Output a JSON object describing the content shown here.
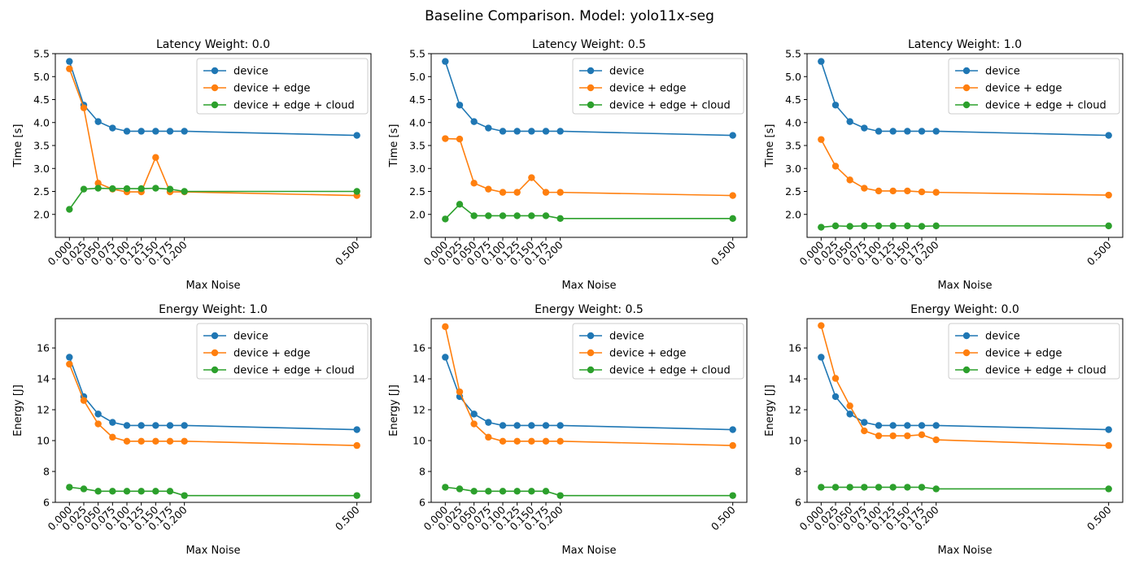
{
  "figure": {
    "title": "Baseline Comparison. Model: yolo11x-seg"
  },
  "colors": {
    "device": "#1f77b4",
    "device + edge": "#ff7f0e",
    "device + edge + cloud": "#2ca02c"
  },
  "chart_data": [
    {
      "type": "line",
      "title": "Latency Weight: 0.0",
      "xlabel": "Max Noise",
      "ylabel": "Time [s]",
      "x": [
        0.0,
        0.025,
        0.05,
        0.075,
        0.1,
        0.125,
        0.15,
        0.175,
        0.2,
        0.5
      ],
      "xticklabels": [
        "0.000",
        "0.025",
        "0.050",
        "0.075",
        "0.100",
        "0.125",
        "0.150",
        "0.175",
        "0.200",
        "0.500"
      ],
      "yticks": [
        2.0,
        2.5,
        3.0,
        3.5,
        4.0,
        4.5,
        5.0,
        5.5
      ],
      "yticklabels": [
        "2.0",
        "2.5",
        "3.0",
        "3.5",
        "4.0",
        "4.5",
        "5.0",
        "5.5"
      ],
      "ylim": [
        1.5,
        5.5
      ],
      "legend": "upper right",
      "grid": false,
      "series": [
        {
          "name": "device",
          "values": [
            5.33,
            4.38,
            4.02,
            3.88,
            3.81,
            3.81,
            3.81,
            3.81,
            3.81,
            3.72
          ]
        },
        {
          "name": "device + edge",
          "values": [
            5.17,
            4.32,
            2.68,
            2.55,
            2.49,
            2.49,
            3.24,
            2.49,
            2.49,
            2.41
          ]
        },
        {
          "name": "device + edge + cloud",
          "values": [
            2.11,
            2.55,
            2.57,
            2.56,
            2.56,
            2.56,
            2.57,
            2.55,
            2.5,
            2.5
          ]
        }
      ]
    },
    {
      "type": "line",
      "title": "Latency Weight: 0.5",
      "xlabel": "Max Noise",
      "ylabel": "Time [s]",
      "x": [
        0.0,
        0.025,
        0.05,
        0.075,
        0.1,
        0.125,
        0.15,
        0.175,
        0.2,
        0.5
      ],
      "xticklabels": [
        "0.000",
        "0.025",
        "0.050",
        "0.075",
        "0.100",
        "0.125",
        "0.150",
        "0.175",
        "0.200",
        "0.500"
      ],
      "yticks": [
        2.0,
        2.5,
        3.0,
        3.5,
        4.0,
        4.5,
        5.0,
        5.5
      ],
      "yticklabels": [
        "2.0",
        "2.5",
        "3.0",
        "3.5",
        "4.0",
        "4.5",
        "5.0",
        "5.5"
      ],
      "ylim": [
        1.5,
        5.5
      ],
      "legend": "upper right",
      "grid": false,
      "series": [
        {
          "name": "device",
          "values": [
            5.33,
            4.38,
            4.02,
            3.88,
            3.81,
            3.81,
            3.81,
            3.81,
            3.81,
            3.72
          ]
        },
        {
          "name": "device + edge",
          "values": [
            3.65,
            3.64,
            2.68,
            2.55,
            2.48,
            2.48,
            2.8,
            2.48,
            2.48,
            2.41
          ]
        },
        {
          "name": "device + edge + cloud",
          "values": [
            1.9,
            2.22,
            1.97,
            1.97,
            1.97,
            1.97,
            1.97,
            1.97,
            1.91,
            1.91
          ]
        }
      ]
    },
    {
      "type": "line",
      "title": "Latency Weight: 1.0",
      "xlabel": "Max Noise",
      "ylabel": "Time [s]",
      "x": [
        0.0,
        0.025,
        0.05,
        0.075,
        0.1,
        0.125,
        0.15,
        0.175,
        0.2,
        0.5
      ],
      "xticklabels": [
        "0.000",
        "0.025",
        "0.050",
        "0.075",
        "0.100",
        "0.125",
        "0.150",
        "0.175",
        "0.200",
        "0.500"
      ],
      "yticks": [
        2.0,
        2.5,
        3.0,
        3.5,
        4.0,
        4.5,
        5.0,
        5.5
      ],
      "yticklabels": [
        "2.0",
        "2.5",
        "3.0",
        "3.5",
        "4.0",
        "4.5",
        "5.0",
        "5.5"
      ],
      "ylim": [
        1.5,
        5.5
      ],
      "legend": "upper right",
      "grid": false,
      "series": [
        {
          "name": "device",
          "values": [
            5.33,
            4.38,
            4.02,
            3.88,
            3.81,
            3.81,
            3.81,
            3.81,
            3.81,
            3.72
          ]
        },
        {
          "name": "device + edge",
          "values": [
            3.63,
            3.05,
            2.75,
            2.57,
            2.51,
            2.51,
            2.51,
            2.49,
            2.48,
            2.42
          ]
        },
        {
          "name": "device + edge + cloud",
          "values": [
            1.72,
            1.75,
            1.74,
            1.75,
            1.75,
            1.75,
            1.75,
            1.74,
            1.75,
            1.75
          ]
        }
      ]
    },
    {
      "type": "line",
      "title": "Energy Weight: 1.0",
      "xlabel": "Max Noise",
      "ylabel": "Energy [J]",
      "x": [
        0.0,
        0.025,
        0.05,
        0.075,
        0.1,
        0.125,
        0.15,
        0.175,
        0.2,
        0.5
      ],
      "xticklabels": [
        "0.000",
        "0.025",
        "0.050",
        "0.075",
        "0.100",
        "0.125",
        "0.150",
        "0.175",
        "0.200",
        "0.500"
      ],
      "yticks": [
        6,
        8,
        10,
        12,
        14,
        16
      ],
      "yticklabels": [
        "6",
        "8",
        "10",
        "12",
        "14",
        "16"
      ],
      "ylim": [
        6,
        17.9
      ],
      "legend": "upper right",
      "grid": false,
      "series": [
        {
          "name": "device",
          "values": [
            15.4,
            12.85,
            11.72,
            11.18,
            10.98,
            10.98,
            10.98,
            10.98,
            10.98,
            10.71
          ]
        },
        {
          "name": "device + edge",
          "values": [
            14.95,
            12.6,
            11.08,
            10.22,
            9.96,
            9.96,
            9.96,
            9.96,
            9.96,
            9.68
          ]
        },
        {
          "name": "device + edge + cloud",
          "values": [
            6.98,
            6.87,
            6.72,
            6.72,
            6.72,
            6.72,
            6.72,
            6.72,
            6.44,
            6.44
          ]
        }
      ]
    },
    {
      "type": "line",
      "title": "Energy Weight: 0.5",
      "xlabel": "Max Noise",
      "ylabel": "Energy [J]",
      "x": [
        0.0,
        0.025,
        0.05,
        0.075,
        0.1,
        0.125,
        0.15,
        0.175,
        0.2,
        0.5
      ],
      "xticklabels": [
        "0.000",
        "0.025",
        "0.050",
        "0.075",
        "0.100",
        "0.125",
        "0.150",
        "0.175",
        "0.200",
        "0.500"
      ],
      "yticks": [
        6,
        8,
        10,
        12,
        14,
        16
      ],
      "yticklabels": [
        "6",
        "8",
        "10",
        "12",
        "14",
        "16"
      ],
      "ylim": [
        6,
        17.9
      ],
      "legend": "upper right",
      "grid": false,
      "series": [
        {
          "name": "device",
          "values": [
            15.4,
            12.85,
            11.72,
            11.18,
            10.98,
            10.98,
            10.98,
            10.98,
            10.98,
            10.71
          ]
        },
        {
          "name": "device + edge",
          "values": [
            17.38,
            13.16,
            11.08,
            10.22,
            9.96,
            9.96,
            9.96,
            9.96,
            9.96,
            9.68
          ]
        },
        {
          "name": "device + edge + cloud",
          "values": [
            6.98,
            6.87,
            6.72,
            6.72,
            6.72,
            6.72,
            6.72,
            6.72,
            6.44,
            6.44
          ]
        }
      ]
    },
    {
      "type": "line",
      "title": "Energy Weight: 0.0",
      "xlabel": "Max Noise",
      "ylabel": "Energy [J]",
      "x": [
        0.0,
        0.025,
        0.05,
        0.075,
        0.1,
        0.125,
        0.15,
        0.175,
        0.2,
        0.5
      ],
      "xticklabels": [
        "0.000",
        "0.025",
        "0.050",
        "0.075",
        "0.100",
        "0.125",
        "0.150",
        "0.175",
        "0.200",
        "0.500"
      ],
      "yticks": [
        6,
        8,
        10,
        12,
        14,
        16
      ],
      "yticklabels": [
        "6",
        "8",
        "10",
        "12",
        "14",
        "16"
      ],
      "ylim": [
        6,
        17.9
      ],
      "legend": "upper right",
      "grid": false,
      "series": [
        {
          "name": "device",
          "values": [
            15.4,
            12.85,
            11.72,
            11.18,
            10.98,
            10.98,
            10.98,
            10.98,
            10.98,
            10.71
          ]
        },
        {
          "name": "device + edge",
          "values": [
            17.45,
            14.03,
            12.25,
            10.63,
            10.31,
            10.31,
            10.31,
            10.38,
            10.05,
            9.68
          ]
        },
        {
          "name": "device + edge + cloud",
          "values": [
            6.98,
            6.98,
            6.98,
            6.98,
            6.98,
            6.98,
            6.98,
            6.98,
            6.87,
            6.87
          ]
        }
      ]
    }
  ]
}
